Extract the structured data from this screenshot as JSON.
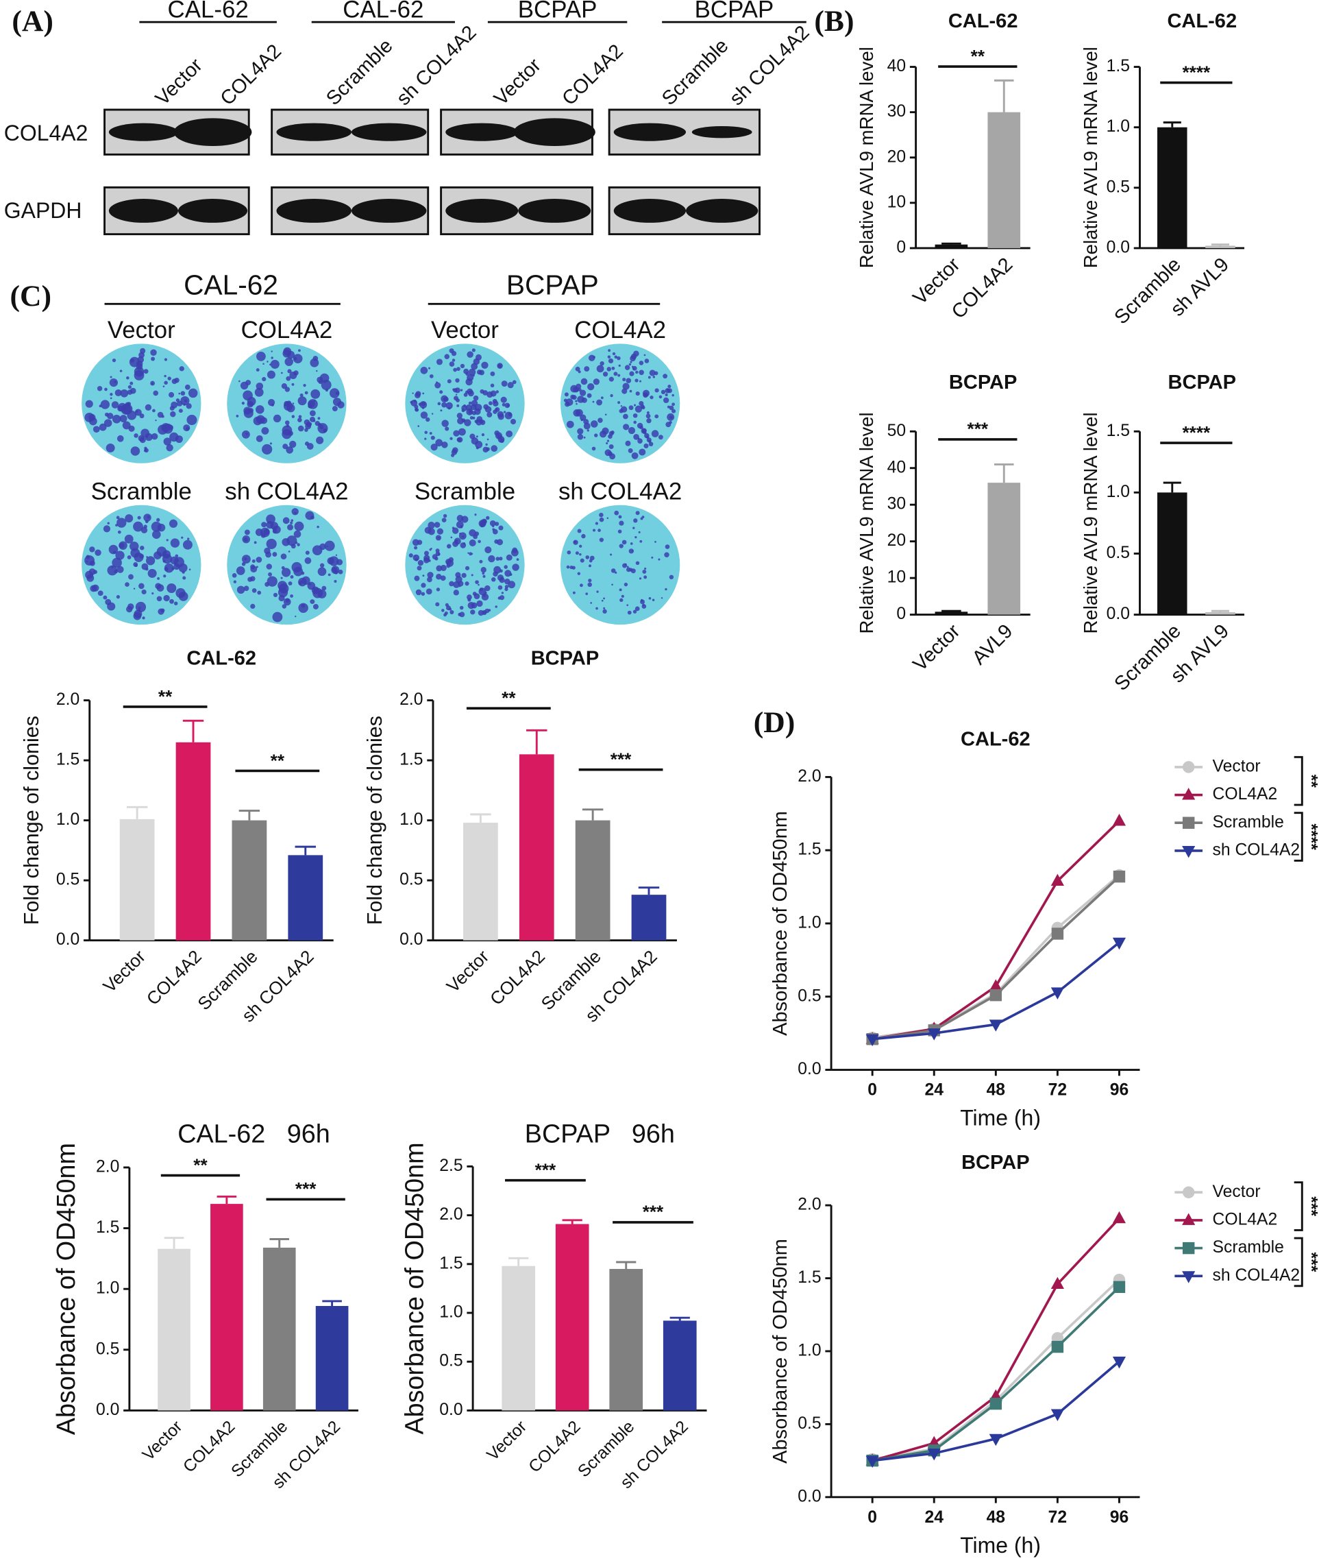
{
  "panels": {
    "A": "(A)",
    "B": "(B)",
    "C": "(C)",
    "D": "(D)"
  },
  "blots": {
    "groups": [
      {
        "title": "CAL-62",
        "lanes": [
          "Vector",
          "COL4A2"
        ]
      },
      {
        "title": "CAL-62",
        "lanes": [
          "Scramble",
          "sh COL4A2"
        ]
      },
      {
        "title": "BCPAP",
        "lanes": [
          "Vector",
          "COL4A2"
        ]
      },
      {
        "title": "BCPAP",
        "lanes": [
          "Scramble",
          "sh COL4A2"
        ]
      }
    ],
    "rows": [
      "COL4A2",
      "GAPDH"
    ]
  },
  "colonies": {
    "groups": [
      {
        "title": "CAL-62",
        "labels": [
          "Vector",
          "COL4A2",
          "Scramble",
          "sh COL4A2"
        ]
      },
      {
        "title": "BCPAP",
        "labels": [
          "Vector",
          "COL4A2",
          "Scramble",
          "sh COL4A2"
        ]
      }
    ]
  },
  "chart_data": [
    {
      "type": "bar",
      "title": "CAL-62",
      "ylabel": "Relative AVL9 mRNA level",
      "categories": [
        "Vector",
        "COL4A2"
      ],
      "values": [
        0.8,
        30
      ],
      "errors": [
        0.2,
        7
      ],
      "colors": [
        "#111111",
        "#a6a6a6"
      ],
      "ylim": [
        0,
        40
      ],
      "yticks": [
        0,
        10,
        20,
        30,
        40
      ],
      "annotations": [
        {
          "text": "**",
          "between": [
            0,
            1
          ]
        }
      ]
    },
    {
      "type": "bar",
      "title": "CAL-62",
      "ylabel": "Relative AVL9 mRNA level",
      "categories": [
        "Scramble",
        "sh AVL9"
      ],
      "values": [
        1.0,
        0.02
      ],
      "errors": [
        0.04,
        0.01
      ],
      "colors": [
        "#111111",
        "#bdbdbd"
      ],
      "ylim": [
        0,
        1.5
      ],
      "yticks": [
        {
          "value": 0,
          "label": "0.0"
        },
        0.5,
        {
          "value": 1,
          "label": "1.0"
        },
        1.5
      ],
      "annotations": [
        {
          "text": "****",
          "between": [
            0,
            1
          ]
        }
      ]
    },
    {
      "type": "bar",
      "title": "BCPAP",
      "ylabel": "Relative AVL9 mRNA level",
      "categories": [
        "Vector",
        "AVL9"
      ],
      "values": [
        0.8,
        36
      ],
      "errors": [
        0.2,
        5
      ],
      "colors": [
        "#111111",
        "#a6a6a6"
      ],
      "ylim": [
        0,
        50
      ],
      "yticks": [
        0,
        10,
        20,
        30,
        40,
        50
      ],
      "annotations": [
        {
          "text": "***",
          "between": [
            0,
            1
          ]
        }
      ]
    },
    {
      "type": "bar",
      "title": "BCPAP",
      "ylabel": "Relative AVL9 mRNA level",
      "categories": [
        "Scramble",
        "sh AVL9"
      ],
      "values": [
        1.0,
        0.02
      ],
      "errors": [
        0.08,
        0.01
      ],
      "colors": [
        "#111111",
        "#bdbdbd"
      ],
      "ylim": [
        0,
        1.5
      ],
      "yticks": [
        {
          "value": 0,
          "label": "0.0"
        },
        0.5,
        {
          "value": 1,
          "label": "1.0"
        },
        1.5
      ],
      "annotations": [
        {
          "text": "****",
          "between": [
            0,
            1
          ]
        }
      ]
    },
    {
      "type": "bar",
      "title": "CAL-62",
      "ylabel": "Fold change of clonies",
      "categories": [
        "Vector",
        "COL4A2",
        "Scramble",
        "sh COL4A2"
      ],
      "values": [
        1.01,
        1.65,
        1.0,
        0.71
      ],
      "errors": [
        0.1,
        0.18,
        0.08,
        0.07
      ],
      "colors": [
        "#d9d9d9",
        "#d81b60",
        "#808080",
        "#2e3a9c"
      ],
      "ylim": [
        0,
        2
      ],
      "yticks": [
        {
          "value": 0,
          "label": "0.0"
        },
        0.5,
        {
          "value": 1,
          "label": "1.0"
        },
        1.5,
        {
          "value": 2,
          "label": "2.0"
        }
      ],
      "annotations": [
        {
          "text": "**",
          "between": [
            0,
            1
          ]
        },
        {
          "text": "**",
          "between": [
            2,
            3
          ]
        }
      ]
    },
    {
      "type": "bar",
      "title": "BCPAP",
      "ylabel": "Fold change of clonies",
      "categories": [
        "Vector",
        "COL4A2",
        "Scramble",
        "sh COL4A2"
      ],
      "values": [
        0.98,
        1.55,
        1.0,
        0.38
      ],
      "errors": [
        0.07,
        0.2,
        0.09,
        0.06
      ],
      "colors": [
        "#d9d9d9",
        "#d81b60",
        "#808080",
        "#2e3a9c"
      ],
      "ylim": [
        0,
        2
      ],
      "yticks": [
        {
          "value": 0,
          "label": "0.0"
        },
        0.5,
        {
          "value": 1,
          "label": "1.0"
        },
        1.5,
        {
          "value": 2,
          "label": "2.0"
        }
      ],
      "annotations": [
        {
          "text": "**",
          "between": [
            0,
            1
          ]
        },
        {
          "text": "***",
          "between": [
            2,
            3
          ]
        }
      ]
    },
    {
      "type": "bar",
      "title": "CAL-62   96h",
      "ylabel": "Absorbance of OD450nm",
      "categories": [
        "Vector",
        "COL4A2",
        "Scramble",
        "sh COL4A2"
      ],
      "values": [
        1.33,
        1.7,
        1.34,
        0.86
      ],
      "errors": [
        0.09,
        0.06,
        0.07,
        0.04
      ],
      "colors": [
        "#d9d9d9",
        "#d81b60",
        "#808080",
        "#2e3a9c"
      ],
      "ylim": [
        0,
        2
      ],
      "yticks": [
        {
          "value": 0,
          "label": "0.0"
        },
        0.5,
        {
          "value": 1,
          "label": "1.0"
        },
        1.5,
        {
          "value": 2,
          "label": "2.0"
        }
      ],
      "annotations": [
        {
          "text": "**",
          "between": [
            0,
            1
          ]
        },
        {
          "text": "***",
          "between": [
            2,
            3
          ]
        }
      ]
    },
    {
      "type": "bar",
      "title": "BCPAP   96h",
      "ylabel": "Absorbance of OD450nm",
      "categories": [
        "Vector",
        "COL4A2",
        "Scramble",
        "sh COL4A2"
      ],
      "values": [
        1.48,
        1.91,
        1.45,
        0.92
      ],
      "errors": [
        0.08,
        0.04,
        0.07,
        0.03
      ],
      "colors": [
        "#d9d9d9",
        "#d81b60",
        "#808080",
        "#2e3a9c"
      ],
      "ylim": [
        0,
        2.5
      ],
      "yticks": [
        {
          "value": 0,
          "label": "0.0"
        },
        0.5,
        {
          "value": 1,
          "label": "1.0"
        },
        1.5,
        {
          "value": 2,
          "label": "2.0"
        },
        2.5
      ],
      "annotations": [
        {
          "text": "***",
          "between": [
            0,
            1
          ]
        },
        {
          "text": "***",
          "between": [
            2,
            3
          ]
        }
      ]
    },
    {
      "type": "line",
      "title": "CAL-62",
      "xlabel": "Time (h)",
      "ylabel": "Absorbance of OD450nm",
      "x": [
        0,
        24,
        48,
        72,
        96
      ],
      "xlim": [
        -16,
        104
      ],
      "xticks": [
        0,
        24,
        48,
        72,
        96
      ],
      "ylim": [
        0,
        2
      ],
      "yticks": [
        {
          "value": 0,
          "label": "0.0"
        },
        0.5,
        {
          "value": 1,
          "label": "1.0"
        },
        1.5,
        {
          "value": 2,
          "label": "2.0"
        }
      ],
      "series": [
        {
          "name": "Vector",
          "color": "#c8c8c8",
          "marker": "circle",
          "values": [
            0.22,
            0.28,
            0.52,
            0.97,
            1.33
          ]
        },
        {
          "name": "COL4A2",
          "color": "#a3174f",
          "marker": "triangle-up",
          "values": [
            0.21,
            0.28,
            0.57,
            1.29,
            1.7
          ]
        },
        {
          "name": "Scramble",
          "color": "#7a7a7a",
          "marker": "square",
          "values": [
            0.21,
            0.27,
            0.51,
            0.93,
            1.32
          ]
        },
        {
          "name": "sh COL4A2",
          "color": "#2b3a9a",
          "marker": "triangle-down",
          "values": [
            0.21,
            0.25,
            0.31,
            0.53,
            0.87
          ]
        }
      ],
      "annotations": [
        {
          "text": "**",
          "between": [
            0,
            1
          ]
        },
        {
          "text": "****",
          "between": [
            2,
            3
          ]
        }
      ]
    },
    {
      "type": "line",
      "title": "BCPAP",
      "xlabel": "Time (h)",
      "ylabel": "Absorbance of OD450nm",
      "x": [
        0,
        24,
        48,
        72,
        96
      ],
      "xlim": [
        -16,
        104
      ],
      "xticks": [
        0,
        24,
        48,
        72,
        96
      ],
      "ylim": [
        0,
        2
      ],
      "yticks": [
        {
          "value": 0,
          "label": "0.0"
        },
        0.5,
        {
          "value": 1,
          "label": "1.0"
        },
        1.5,
        {
          "value": 2,
          "label": "2.0"
        }
      ],
      "series": [
        {
          "name": "Vector",
          "color": "#c8c8c8",
          "marker": "circle",
          "values": [
            0.26,
            0.33,
            0.66,
            1.09,
            1.49
          ]
        },
        {
          "name": "COL4A2",
          "color": "#a3174f",
          "marker": "triangle-up",
          "values": [
            0.25,
            0.37,
            0.69,
            1.46,
            1.91
          ]
        },
        {
          "name": "Scramble",
          "color": "#3f7a76",
          "marker": "square",
          "values": [
            0.25,
            0.32,
            0.64,
            1.03,
            1.44
          ]
        },
        {
          "name": "sh COL4A2",
          "color": "#2b3a9a",
          "marker": "triangle-down",
          "values": [
            0.25,
            0.3,
            0.4,
            0.57,
            0.93
          ]
        }
      ],
      "annotations": [
        {
          "text": "***",
          "between": [
            0,
            1
          ]
        },
        {
          "text": "***",
          "between": [
            2,
            3
          ]
        }
      ]
    }
  ]
}
